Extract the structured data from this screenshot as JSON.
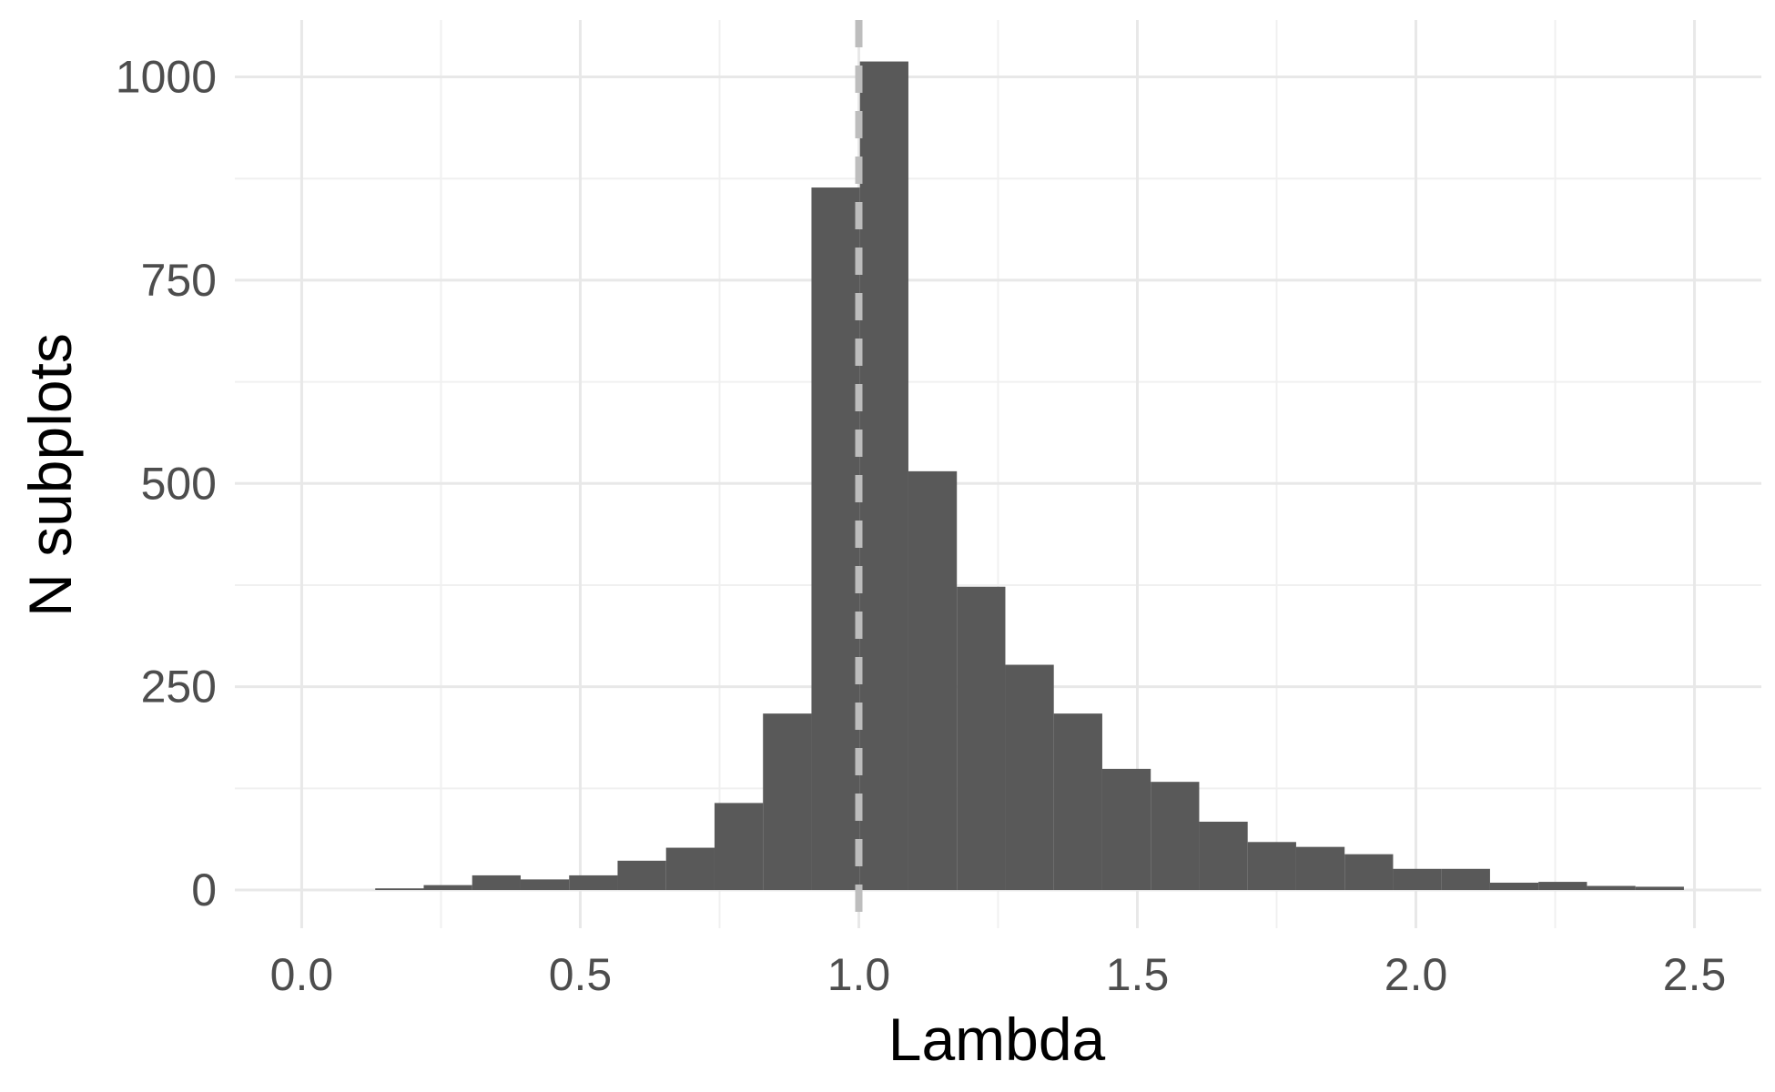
{
  "chart_data": {
    "type": "bar",
    "title": "",
    "xlabel": "Lambda",
    "ylabel": "N subplots",
    "xlim": [
      -0.12,
      2.62
    ],
    "ylim": [
      -47,
      1070
    ],
    "x_ticks": [
      0.0,
      0.5,
      1.0,
      1.5,
      2.0,
      2.5
    ],
    "x_tick_labels": [
      "0.0",
      "0.5",
      "1.0",
      "1.5",
      "2.0",
      "2.5"
    ],
    "y_ticks": [
      0,
      250,
      500,
      750,
      1000
    ],
    "y_tick_labels": [
      "0",
      "250",
      "500",
      "750",
      "1000"
    ],
    "grid": true,
    "legend": "none",
    "bar_color": "#595959",
    "reference_line": {
      "x": 1.0,
      "style": "dashed",
      "color": "#bdbdbd"
    },
    "bins": [
      {
        "x0": 0.132,
        "x1": 0.219,
        "count": 2
      },
      {
        "x0": 0.219,
        "x1": 0.306,
        "count": 6
      },
      {
        "x0": 0.306,
        "x1": 0.393,
        "count": 18
      },
      {
        "x0": 0.393,
        "x1": 0.48,
        "count": 13
      },
      {
        "x0": 0.48,
        "x1": 0.567,
        "count": 18
      },
      {
        "x0": 0.567,
        "x1": 0.654,
        "count": 36
      },
      {
        "x0": 0.654,
        "x1": 0.741,
        "count": 52
      },
      {
        "x0": 0.741,
        "x1": 0.828,
        "count": 107
      },
      {
        "x0": 0.828,
        "x1": 0.915,
        "count": 217
      },
      {
        "x0": 0.915,
        "x1": 1.002,
        "count": 864
      },
      {
        "x0": 1.002,
        "x1": 1.089,
        "count": 1019
      },
      {
        "x0": 1.089,
        "x1": 1.176,
        "count": 515
      },
      {
        "x0": 1.176,
        "x1": 1.263,
        "count": 373
      },
      {
        "x0": 1.263,
        "x1": 1.35,
        "count": 277
      },
      {
        "x0": 1.35,
        "x1": 1.437,
        "count": 217
      },
      {
        "x0": 1.437,
        "x1": 1.524,
        "count": 149
      },
      {
        "x0": 1.524,
        "x1": 1.611,
        "count": 133
      },
      {
        "x0": 1.611,
        "x1": 1.698,
        "count": 84
      },
      {
        "x0": 1.698,
        "x1": 1.785,
        "count": 59
      },
      {
        "x0": 1.785,
        "x1": 1.872,
        "count": 53
      },
      {
        "x0": 1.872,
        "x1": 1.959,
        "count": 44
      },
      {
        "x0": 1.959,
        "x1": 2.046,
        "count": 26
      },
      {
        "x0": 2.046,
        "x1": 2.133,
        "count": 26
      },
      {
        "x0": 2.133,
        "x1": 2.22,
        "count": 9
      },
      {
        "x0": 2.22,
        "x1": 2.307,
        "count": 10
      },
      {
        "x0": 2.307,
        "x1": 2.394,
        "count": 5
      },
      {
        "x0": 2.394,
        "x1": 2.481,
        "count": 4
      }
    ]
  }
}
